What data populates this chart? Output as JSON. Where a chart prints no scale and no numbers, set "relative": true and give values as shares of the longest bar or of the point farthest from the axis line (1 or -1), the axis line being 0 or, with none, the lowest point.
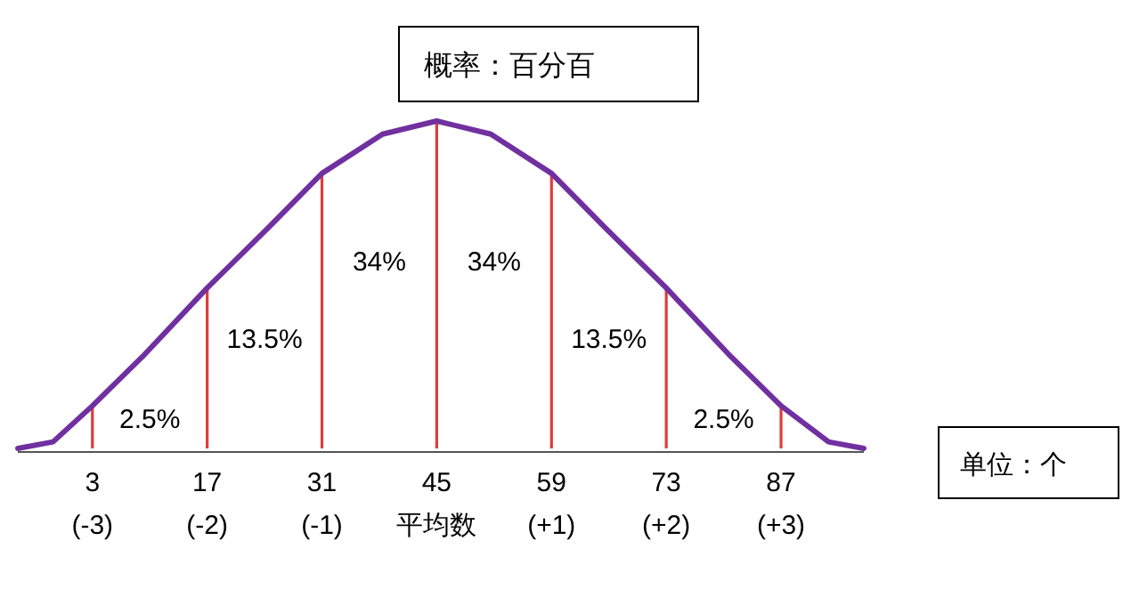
{
  "chart_data": {
    "type": "line",
    "title": "概率：百分百",
    "relative": true,
    "xlim": [
      -6.1,
      97.1
    ],
    "xticks": [
      3,
      17,
      31,
      45,
      59,
      73,
      87
    ],
    "series": [
      {
        "color": "#7030a0",
        "x": [
          -6.1,
          -1.8,
          3,
          9.1,
          17,
          24.3,
          31,
          38.4,
          45,
          51.6,
          59,
          65.7,
          73,
          80.9,
          87,
          92.8,
          97.1
        ],
        "values": [
          0,
          0.02,
          0.13,
          0.28,
          0.49,
          0.67,
          0.84,
          0.96,
          1,
          0.96,
          0.84,
          0.67,
          0.49,
          0.28,
          0.13,
          0.02,
          0
        ]
      },
      {
        "type": "bar",
        "color": "#e03c3c",
        "x": [
          3,
          17,
          31,
          45,
          59,
          73,
          87
        ],
        "values": [
          0.13,
          0.49,
          0.84,
          1,
          0.84,
          0.49,
          0.13
        ]
      }
    ],
    "annotations": [
      "2.5%",
      "13.5%",
      "34%",
      "34%",
      "13.5%",
      "2.5%",
      "单位：个",
      "(-3)",
      "(-2)",
      "(-1)",
      "平均数",
      "(+1)",
      "(+2)",
      "(+3)"
    ]
  }
}
